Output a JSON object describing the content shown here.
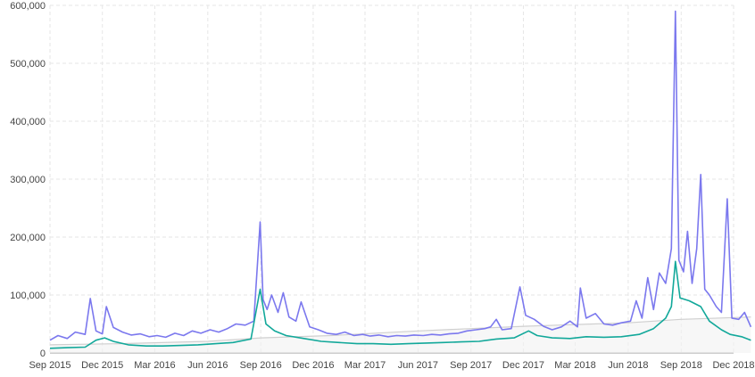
{
  "chart_data": {
    "type": "line",
    "title": "",
    "xlabel": "",
    "ylabel": "",
    "ylim": [
      0,
      600000
    ],
    "grid": true,
    "legend": "none",
    "y_ticks": [
      {
        "value": 0,
        "label": "0"
      },
      {
        "value": 100000,
        "label": "100,000"
      },
      {
        "value": 200000,
        "label": "200,000"
      },
      {
        "value": 300000,
        "label": "300,000"
      },
      {
        "value": 400000,
        "label": "400,000"
      },
      {
        "value": 500000,
        "label": "500,000"
      },
      {
        "value": 600000,
        "label": "600,000"
      }
    ],
    "x_ticks": [
      "Sep 2015",
      "Dec 2015",
      "Mar 2016",
      "Jun 2016",
      "Sep 2016",
      "Dec 2016",
      "Mar 2017",
      "Jun 2017",
      "Sep 2017",
      "Dec 2017",
      "Mar 2018",
      "Jun 2018",
      "Sep 2018",
      "Dec 2018"
    ],
    "x_start": "Sep 2015",
    "x_end": "Dec 2018",
    "series": [
      {
        "color": "#7b78ee",
        "points": [
          [
            "2015-09-01",
            22000
          ],
          [
            "2015-09-15",
            30000
          ],
          [
            "2015-10-01",
            25000
          ],
          [
            "2015-10-15",
            36000
          ],
          [
            "2015-11-01",
            32000
          ],
          [
            "2015-11-10",
            94000
          ],
          [
            "2015-11-20",
            38000
          ],
          [
            "2015-12-01",
            33000
          ],
          [
            "2015-12-08",
            80000
          ],
          [
            "2015-12-20",
            44000
          ],
          [
            "2016-01-05",
            36000
          ],
          [
            "2016-01-20",
            31000
          ],
          [
            "2016-02-05",
            33000
          ],
          [
            "2016-02-20",
            28000
          ],
          [
            "2016-03-05",
            30000
          ],
          [
            "2016-03-20",
            27000
          ],
          [
            "2016-04-05",
            34000
          ],
          [
            "2016-04-20",
            30000
          ],
          [
            "2016-05-05",
            38000
          ],
          [
            "2016-05-20",
            34000
          ],
          [
            "2016-06-05",
            40000
          ],
          [
            "2016-06-20",
            36000
          ],
          [
            "2016-07-05",
            42000
          ],
          [
            "2016-07-20",
            50000
          ],
          [
            "2016-08-05",
            48000
          ],
          [
            "2016-08-20",
            55000
          ],
          [
            "2016-08-31",
            226000
          ],
          [
            "2016-09-05",
            92000
          ],
          [
            "2016-09-12",
            75000
          ],
          [
            "2016-09-20",
            100000
          ],
          [
            "2016-10-01",
            70000
          ],
          [
            "2016-10-10",
            104000
          ],
          [
            "2016-10-20",
            62000
          ],
          [
            "2016-11-01",
            55000
          ],
          [
            "2016-11-10",
            88000
          ],
          [
            "2016-11-25",
            45000
          ],
          [
            "2016-12-10",
            40000
          ],
          [
            "2016-12-25",
            34000
          ],
          [
            "2017-01-10",
            32000
          ],
          [
            "2017-01-25",
            36000
          ],
          [
            "2017-02-10",
            30000
          ],
          [
            "2017-02-25",
            32000
          ],
          [
            "2017-03-10",
            29000
          ],
          [
            "2017-03-25",
            31000
          ],
          [
            "2017-04-10",
            28000
          ],
          [
            "2017-04-25",
            30000
          ],
          [
            "2017-05-10",
            29000
          ],
          [
            "2017-05-25",
            31000
          ],
          [
            "2017-06-10",
            30000
          ],
          [
            "2017-06-25",
            32000
          ],
          [
            "2017-07-10",
            31000
          ],
          [
            "2017-07-25",
            33000
          ],
          [
            "2017-08-10",
            34000
          ],
          [
            "2017-08-25",
            38000
          ],
          [
            "2017-09-10",
            40000
          ],
          [
            "2017-09-25",
            42000
          ],
          [
            "2017-10-05",
            45000
          ],
          [
            "2017-10-15",
            58000
          ],
          [
            "2017-10-25",
            40000
          ],
          [
            "2017-11-10",
            42000
          ],
          [
            "2017-11-25",
            114000
          ],
          [
            "2017-12-05",
            65000
          ],
          [
            "2017-12-20",
            58000
          ],
          [
            "2018-01-05",
            46000
          ],
          [
            "2018-01-20",
            40000
          ],
          [
            "2018-02-05",
            45000
          ],
          [
            "2018-02-20",
            55000
          ],
          [
            "2018-03-05",
            45000
          ],
          [
            "2018-03-10",
            112000
          ],
          [
            "2018-03-20",
            60000
          ],
          [
            "2018-04-05",
            68000
          ],
          [
            "2018-04-20",
            50000
          ],
          [
            "2018-05-05",
            48000
          ],
          [
            "2018-05-20",
            52000
          ],
          [
            "2018-06-05",
            55000
          ],
          [
            "2018-06-15",
            90000
          ],
          [
            "2018-06-25",
            60000
          ],
          [
            "2018-07-05",
            130000
          ],
          [
            "2018-07-15",
            75000
          ],
          [
            "2018-07-25",
            138000
          ],
          [
            "2018-08-05",
            120000
          ],
          [
            "2018-08-15",
            180000
          ],
          [
            "2018-08-22",
            590000
          ],
          [
            "2018-08-28",
            160000
          ],
          [
            "2018-09-05",
            140000
          ],
          [
            "2018-09-12",
            210000
          ],
          [
            "2018-09-20",
            120000
          ],
          [
            "2018-09-28",
            180000
          ],
          [
            "2018-10-05",
            308000
          ],
          [
            "2018-10-12",
            110000
          ],
          [
            "2018-10-20",
            100000
          ],
          [
            "2018-11-01",
            80000
          ],
          [
            "2018-11-10",
            70000
          ],
          [
            "2018-11-20",
            266000
          ],
          [
            "2018-11-28",
            60000
          ],
          [
            "2018-12-10",
            58000
          ],
          [
            "2018-12-20",
            70000
          ],
          [
            "2018-12-31",
            45000
          ]
        ]
      },
      {
        "color": "#12a89a",
        "points": [
          [
            "2015-09-01",
            8000
          ],
          [
            "2015-10-01",
            9000
          ],
          [
            "2015-11-01",
            10000
          ],
          [
            "2015-11-20",
            22000
          ],
          [
            "2015-12-05",
            26000
          ],
          [
            "2015-12-20",
            20000
          ],
          [
            "2016-01-15",
            14000
          ],
          [
            "2016-02-15",
            12000
          ],
          [
            "2016-03-15",
            12000
          ],
          [
            "2016-04-15",
            13000
          ],
          [
            "2016-05-15",
            14000
          ],
          [
            "2016-06-15",
            16000
          ],
          [
            "2016-07-15",
            18000
          ],
          [
            "2016-08-15",
            24000
          ],
          [
            "2016-08-31",
            110000
          ],
          [
            "2016-09-10",
            50000
          ],
          [
            "2016-09-25",
            38000
          ],
          [
            "2016-10-15",
            30000
          ],
          [
            "2016-11-15",
            25000
          ],
          [
            "2016-12-15",
            20000
          ],
          [
            "2017-01-15",
            18000
          ],
          [
            "2017-02-15",
            16000
          ],
          [
            "2017-03-15",
            16000
          ],
          [
            "2017-04-15",
            15000
          ],
          [
            "2017-05-15",
            16000
          ],
          [
            "2017-06-15",
            17000
          ],
          [
            "2017-07-15",
            18000
          ],
          [
            "2017-08-15",
            19000
          ],
          [
            "2017-09-15",
            20000
          ],
          [
            "2017-10-15",
            24000
          ],
          [
            "2017-11-15",
            26000
          ],
          [
            "2017-12-10",
            38000
          ],
          [
            "2017-12-25",
            30000
          ],
          [
            "2018-01-20",
            26000
          ],
          [
            "2018-02-20",
            25000
          ],
          [
            "2018-03-20",
            28000
          ],
          [
            "2018-04-20",
            27000
          ],
          [
            "2018-05-20",
            28000
          ],
          [
            "2018-06-20",
            32000
          ],
          [
            "2018-07-15",
            42000
          ],
          [
            "2018-08-05",
            60000
          ],
          [
            "2018-08-15",
            80000
          ],
          [
            "2018-08-22",
            158000
          ],
          [
            "2018-08-30",
            95000
          ],
          [
            "2018-09-15",
            90000
          ],
          [
            "2018-10-05",
            80000
          ],
          [
            "2018-10-20",
            55000
          ],
          [
            "2018-11-10",
            40000
          ],
          [
            "2018-11-25",
            32000
          ],
          [
            "2018-12-15",
            28000
          ],
          [
            "2018-12-31",
            22000
          ]
        ]
      },
      {
        "color": "#cfcfcf",
        "points": [
          [
            "2015-09-01",
            14000
          ],
          [
            "2016-01-01",
            16000
          ],
          [
            "2016-06-01",
            20000
          ],
          [
            "2016-09-01",
            26000
          ],
          [
            "2017-01-01",
            30000
          ],
          [
            "2017-06-01",
            38000
          ],
          [
            "2017-12-01",
            46000
          ],
          [
            "2018-06-01",
            52000
          ],
          [
            "2018-09-01",
            58000
          ],
          [
            "2018-12-31",
            62000
          ]
        ]
      }
    ]
  }
}
